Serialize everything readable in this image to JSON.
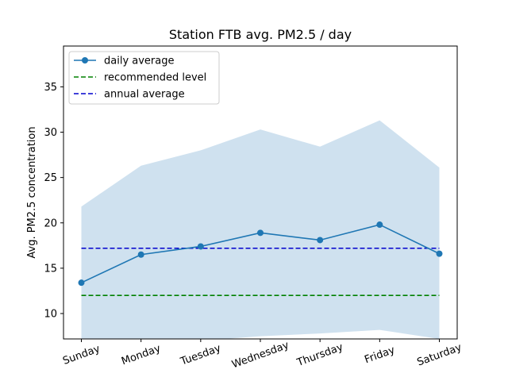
{
  "chart_data": {
    "type": "line",
    "title": "Station FTB avg. PM2.5 / day",
    "xlabel": "",
    "ylabel": "Avg. PM2.5 concentration",
    "categories": [
      "Sunday",
      "Monday",
      "Tuesday",
      "Wednesday",
      "Thursday",
      "Friday",
      "Saturday"
    ],
    "ylim": [
      7.2,
      39.5
    ],
    "yticks": [
      10,
      15,
      20,
      25,
      30,
      35
    ],
    "series": [
      {
        "name": "daily average",
        "values": [
          13.4,
          16.5,
          17.4,
          18.9,
          18.1,
          19.8,
          16.6
        ],
        "color": "#1f77b4",
        "style": "solid",
        "marker": "circle"
      },
      {
        "name": "recommended level",
        "values": [
          12,
          12,
          12,
          12,
          12,
          12,
          12
        ],
        "color": "#008000",
        "style": "dashed"
      },
      {
        "name": "annual average",
        "values": [
          17.2,
          17.2,
          17.2,
          17.2,
          17.2,
          17.2,
          17.2
        ],
        "color": "#0000cd",
        "style": "dashed"
      }
    ],
    "band": {
      "upper": [
        21.8,
        26.3,
        28.0,
        30.3,
        28.4,
        31.3,
        26.1
      ],
      "lower": [
        7.2,
        7.0,
        7.0,
        7.5,
        7.8,
        8.2,
        7.2
      ],
      "color": "#cfe1ef"
    },
    "grid": false,
    "legend_position": "upper-left"
  }
}
